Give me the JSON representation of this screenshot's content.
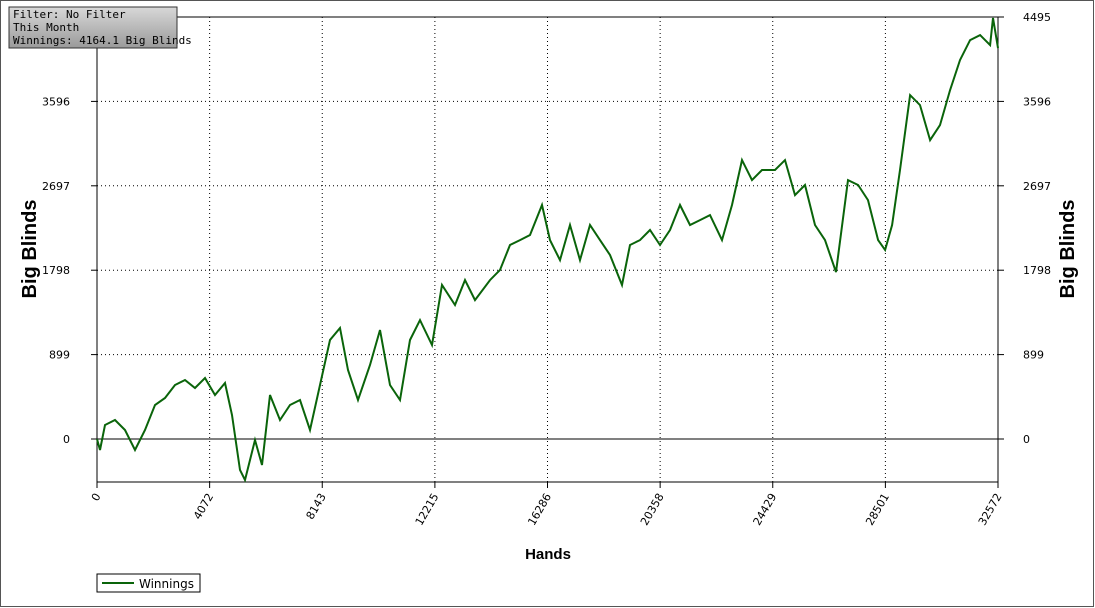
{
  "chart_data": {
    "type": "line",
    "annotations": [
      "Filter: No Filter",
      "This Month",
      "Winnings: 4164.1 Big Blinds"
    ],
    "xlabel": "Hands",
    "ylabel": "Big Blinds",
    "x": [
      0,
      108,
      289,
      651,
      1012,
      1374,
      1735,
      2097,
      2458,
      2820,
      3181,
      3543,
      3904,
      4266,
      4627,
      4881,
      5170,
      5351,
      5712,
      5965,
      6255,
      6616,
      6978,
      7339,
      7701,
      8062,
      8424,
      8785,
      9074,
      9436,
      9870,
      10231,
      10593,
      10954,
      11316,
      11677,
      12111,
      12473,
      12943,
      13304,
      13666,
      14208,
      14570,
      14931,
      15293,
      15654,
      16088,
      16377,
      16739,
      17100,
      17462,
      17823,
      18185,
      18547,
      18980,
      19270,
      19631,
      19993,
      20354,
      20716,
      21077,
      21439,
      21800,
      22162,
      22596,
      22957,
      23319,
      23680,
      24042,
      24512,
      24873,
      25235,
      25596,
      25958,
      26319,
      26717,
      27151,
      27513,
      27874,
      28236,
      28489,
      28742,
      29031,
      29393,
      29754,
      30116,
      30477,
      30839,
      31200,
      31562,
      31924,
      32285,
      32393,
      32572
    ],
    "series": [
      {
        "name": "Winnings",
        "color": "#0a640a",
        "values": [
          0,
          -117,
          149,
          202,
          96,
          -117,
          96,
          362,
          437,
          575,
          628,
          543,
          650,
          469,
          596,
          256,
          -330,
          -437,
          -11,
          -277,
          469,
          202,
          362,
          415,
          96,
          575,
          1054,
          1182,
          735,
          415,
          788,
          1161,
          575,
          415,
          1054,
          1267,
          1001,
          1640,
          1427,
          1693,
          1480,
          1693,
          1800,
          2066,
          2119,
          2173,
          2492,
          2119,
          1906,
          2279,
          1906,
          2279,
          2119,
          1960,
          1640,
          2066,
          2119,
          2226,
          2066,
          2226,
          2492,
          2279,
          2332,
          2385,
          2119,
          2492,
          2971,
          2758,
          2865,
          2865,
          2971,
          2598,
          2705,
          2279,
          2119,
          1778,
          2758,
          2705,
          2545,
          2119,
          2013,
          2279,
          2865,
          3663,
          3557,
          3184,
          3344,
          3717,
          4036,
          4249,
          4302,
          4196,
          4484,
          4164
        ]
      }
    ],
    "xlim": [
      0,
      32572
    ],
    "xticks": [
      0,
      4072,
      8143,
      12215,
      16286,
      20358,
      24429,
      28501,
      32572
    ],
    "ylim": [
      -458,
      4495
    ],
    "yticks": [
      0,
      899,
      1798,
      2697,
      3596,
      4495
    ],
    "grid": true
  }
}
